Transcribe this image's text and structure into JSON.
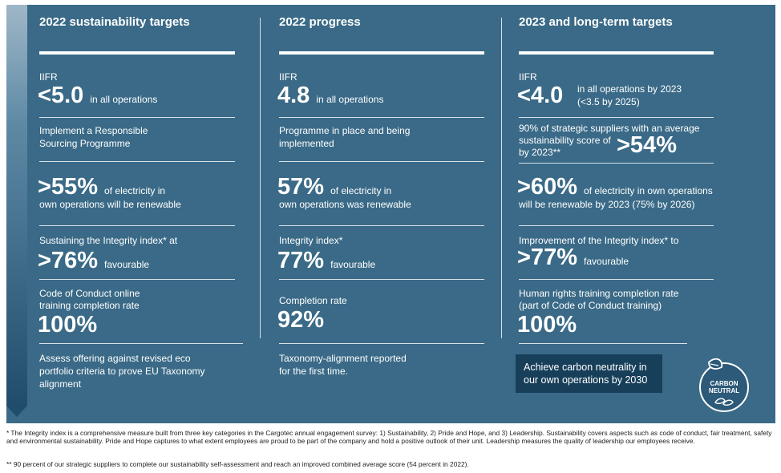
{
  "columns": {
    "targets2022": {
      "title": "2022 sustainability targets",
      "iifr_label": "IIFR",
      "iifr_value": "<5.0",
      "iifr_suffix": "in all operations",
      "sourcing_line1": "Implement a Responsible",
      "sourcing_line2": "Sourcing Programme",
      "electricity_value": ">55%",
      "electricity_suffix": "of electricity in",
      "electricity_line2": "own operations will be renewable",
      "integrity_label": "Sustaining the Integrity index* at",
      "integrity_value": ">76%",
      "integrity_suffix": "favourable",
      "coc_line1": "Code of Conduct online",
      "coc_line2": "training completion rate",
      "coc_value": "100%",
      "eco_line1": "Assess offering against revised eco",
      "eco_line2": "portfolio criteria to prove EU Taxonomy",
      "eco_line3": "alignment"
    },
    "progress2022": {
      "title": "2022 progress",
      "iifr_label": "IIFR",
      "iifr_value": "4.8",
      "iifr_suffix": "in all operations",
      "sourcing_line1": "Programme in place and being",
      "sourcing_line2": "implemented",
      "electricity_value": "57%",
      "electricity_suffix": "of electricity in",
      "electricity_line2": "own operations was renewable",
      "integrity_label": "Integrity index*",
      "integrity_value": "77%",
      "integrity_suffix": "favourable",
      "coc_label": "Completion rate",
      "coc_value": "92%",
      "eco_line1": "Taxonomy-alignment reported",
      "eco_line2": "for the first time."
    },
    "targets2023": {
      "title": "2023 and long-term targets",
      "iifr_label": "IIFR",
      "iifr_value": "<4.0",
      "iifr_suffix1": "in all operations by 2023",
      "iifr_suffix2": "(<3.5 by 2025)",
      "suppliers_line1": "90% of strategic suppliers with an average",
      "suppliers_line2": "sustainability score of",
      "suppliers_line3": "by 2023**",
      "suppliers_value": ">54%",
      "electricity_value": ">60%",
      "electricity_suffix": "of electricity in own operations",
      "electricity_line2": "will be renewable by 2023 (75% by 2026)",
      "integrity_label": "Improvement of the Integrity index* to",
      "integrity_value": ">77%",
      "integrity_suffix": "favourable",
      "hr_line1": "Human rights training completion rate",
      "hr_line2": "(part of Code of Conduct training)",
      "hr_value": "100%",
      "carbon_line1": "Achieve carbon neutrality in",
      "carbon_line2": "our own operations by 2030",
      "badge_line1": "CARBON",
      "badge_line2": "NEUTRAL",
      "badge_icon": "leaf-icon"
    }
  },
  "footnotes": {
    "note1": "* The Integrity index is a comprehensive measure built from three key categories in the Cargotec annual engagement survey: 1) Sustainability, 2) Pride and Hope, and 3) Leadership. Sustainability covers aspects such as code of conduct, fair treatment, safety and environmental sustainability. Pride and Hope captures to what extent employees are proud to be part of the company and hold a positive outlook of their unit. Leadership measures the quality of leadership our employees receive.",
    "note2": "** 90 percent of our strategic suppliers to complete our sustainability self-assessment and reach an improved combined average score (54 percent in 2022)."
  }
}
